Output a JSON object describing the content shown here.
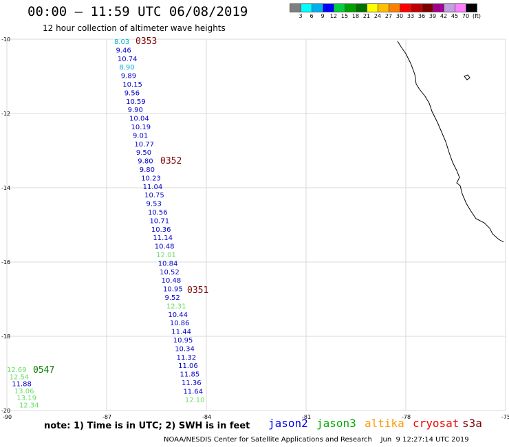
{
  "title": "00:00 — 11:59 UTC 06/08/2019",
  "subtitle": "12 hour collection of altimeter wave heights",
  "legend": {
    "colors": [
      "#7f7f7f",
      "#00ffff",
      "#00b0f0",
      "#0000ff",
      "#00d040",
      "#00a000",
      "#007000",
      "#ffff00",
      "#ffc000",
      "#ff8000",
      "#ff0000",
      "#c00000",
      "#800000",
      "#a0008f",
      "#c0a0e0",
      "#ff80ff",
      "#000000"
    ],
    "labels": [
      "3",
      "6",
      "9",
      "12",
      "15",
      "18",
      "21",
      "24",
      "27",
      "30",
      "33",
      "36",
      "39",
      "42",
      "45",
      "70",
      "(ft)"
    ]
  },
  "axes": {
    "lat_labels": [
      "-10",
      "-12",
      "-14",
      "-16",
      "-18",
      "-20"
    ],
    "lon_labels": [
      "-90",
      "-87",
      "-84",
      "-81",
      "-78",
      "-75"
    ]
  },
  "satellite_colors": {
    "jason2": "#0000cc",
    "jason3": "#66dd66",
    "altika": "#ff9900",
    "cryosat": "#cc0000",
    "s3a": "#800000",
    "cyan": "#00b0d0",
    "green5": "#007700"
  },
  "pass_times": [
    {
      "label": "0353",
      "color": "#800000"
    },
    {
      "label": "0352",
      "color": "#800000"
    },
    {
      "label": "0351",
      "color": "#800000"
    },
    {
      "label": "0547",
      "color": "#007700"
    }
  ],
  "track_main": [
    {
      "v": "8.03",
      "c": "cyan"
    },
    {
      "v": "9.46",
      "c": "jason2"
    },
    {
      "v": "10.74",
      "c": "jason2"
    },
    {
      "v": "8.90",
      "c": "cyan"
    },
    {
      "v": "9.89",
      "c": "jason2"
    },
    {
      "v": "10.15",
      "c": "jason2"
    },
    {
      "v": "9.56",
      "c": "jason2"
    },
    {
      "v": "10.59",
      "c": "jason2"
    },
    {
      "v": "9.90",
      "c": "jason2"
    },
    {
      "v": "10.04",
      "c": "jason2"
    },
    {
      "v": "10.19",
      "c": "jason2"
    },
    {
      "v": "9.01",
      "c": "jason2"
    },
    {
      "v": "10.77",
      "c": "jason2"
    },
    {
      "v": "9.50",
      "c": "jason2"
    },
    {
      "v": "9.80",
      "c": "jason2"
    },
    {
      "v": "9.80",
      "c": "jason2"
    },
    {
      "v": "10.23",
      "c": "jason2"
    },
    {
      "v": "11.04",
      "c": "jason2"
    },
    {
      "v": "10.75",
      "c": "jason2"
    },
    {
      "v": "9.53",
      "c": "jason2"
    },
    {
      "v": "10.56",
      "c": "jason2"
    },
    {
      "v": "10.71",
      "c": "jason2"
    },
    {
      "v": "10.36",
      "c": "jason2"
    },
    {
      "v": "11.14",
      "c": "jason2"
    },
    {
      "v": "10.48",
      "c": "jason2"
    },
    {
      "v": "12.01",
      "c": "jason3"
    },
    {
      "v": "10.84",
      "c": "jason2"
    },
    {
      "v": "10.52",
      "c": "jason2"
    },
    {
      "v": "10.48",
      "c": "jason2"
    },
    {
      "v": "10.95",
      "c": "jason2"
    },
    {
      "v": "9.52",
      "c": "jason2"
    },
    {
      "v": "12.31",
      "c": "jason3"
    },
    {
      "v": "10.44",
      "c": "jason2"
    },
    {
      "v": "10.86",
      "c": "jason2"
    },
    {
      "v": "11.44",
      "c": "jason2"
    },
    {
      "v": "10.95",
      "c": "jason2"
    },
    {
      "v": "10.34",
      "c": "jason2"
    },
    {
      "v": "11.32",
      "c": "jason2"
    },
    {
      "v": "11.06",
      "c": "jason2"
    },
    {
      "v": "11.85",
      "c": "jason2"
    },
    {
      "v": "11.36",
      "c": "jason2"
    },
    {
      "v": "11.64",
      "c": "jason2"
    },
    {
      "v": "12.10",
      "c": "jason3"
    }
  ],
  "track_west": [
    {
      "v": "12.69",
      "c": "jason3"
    },
    {
      "v": "12.54",
      "c": "jason3"
    },
    {
      "v": "11.88",
      "c": "jason2"
    },
    {
      "v": "13.06",
      "c": "jason3"
    },
    {
      "v": "13.19",
      "c": "jason3"
    },
    {
      "v": "12.34",
      "c": "jason3"
    }
  ],
  "note": "note:  1) Time is in UTC;  2) SWH is in feet",
  "satellites": [
    {
      "name": "jason2",
      "color": "#0000ee"
    },
    {
      "name": "jason3",
      "color": "#00aa00"
    },
    {
      "name": "altika",
      "color": "#ff9900"
    },
    {
      "name": "cryosat",
      "color": "#ee0000"
    },
    {
      "name": "s3a",
      "color": "#800000"
    }
  ],
  "footer": "NOAA/NESDIS Center for Satellite Applications and Research    Jun  9 12:27:14 UTC 2019"
}
